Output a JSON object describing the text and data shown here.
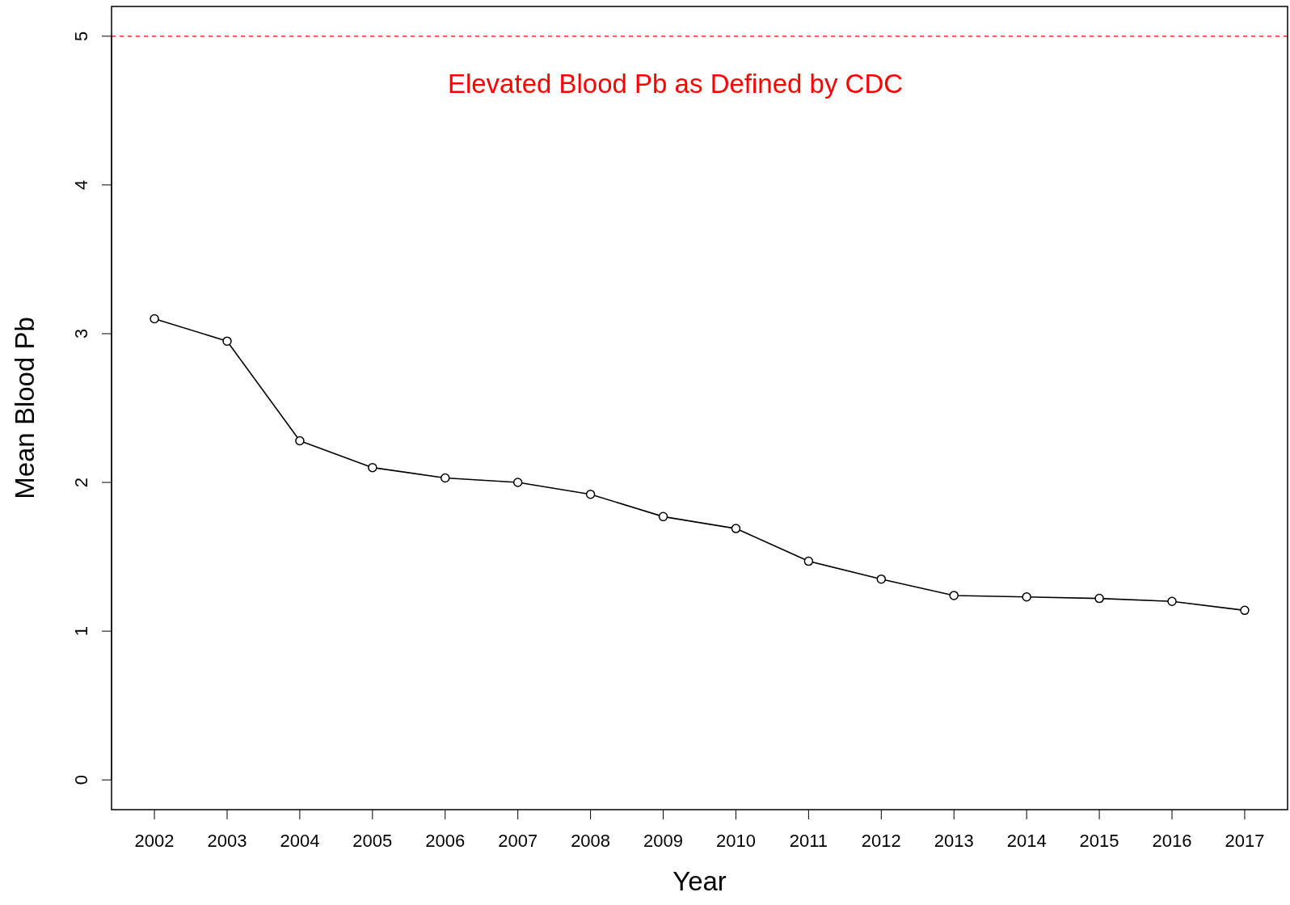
{
  "chart_data": {
    "type": "line",
    "xlabel": "Year",
    "ylabel": "Mean Blood Pb",
    "categories": [
      "2002",
      "2003",
      "2004",
      "2005",
      "2006",
      "2007",
      "2008",
      "2009",
      "2010",
      "2011",
      "2012",
      "2013",
      "2014",
      "2015",
      "2016",
      "2017"
    ],
    "series": [
      {
        "color": "#000000",
        "values": [
          3.1,
          2.95,
          2.28,
          2.1,
          2.03,
          2.0,
          1.92,
          1.77,
          1.69,
          1.47,
          1.35,
          1.24,
          1.23,
          1.22,
          1.2,
          1.14
        ]
      }
    ],
    "ylim": [
      -0.2,
      5.2
    ],
    "yticks": [
      0,
      1,
      2,
      3,
      4,
      5
    ],
    "ref_lines": [
      {
        "axis": "y",
        "value": 5,
        "label": "Elevated Blood Pb as Defined by CDC",
        "color": "#ff0000",
        "line_style": "dashed"
      }
    ],
    "marker": "circle",
    "line_style": "solid",
    "grid": false
  }
}
